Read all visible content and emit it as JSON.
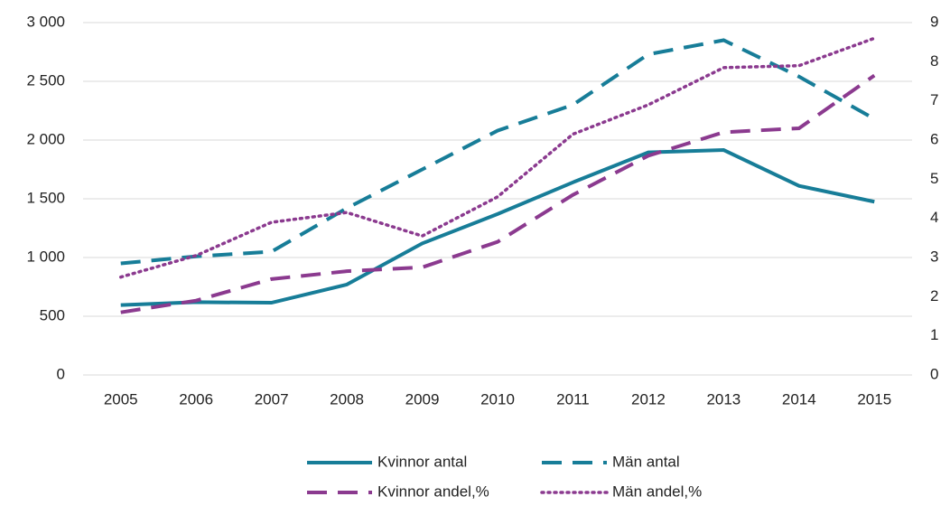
{
  "chart_data": {
    "type": "line",
    "categories": [
      "2005",
      "2006",
      "2007",
      "2008",
      "2009",
      "2010",
      "2011",
      "2012",
      "2013",
      "2014",
      "2015"
    ],
    "ylim": [
      0,
      3000
    ],
    "yticks": [
      0,
      500,
      {
        "value": 1000,
        "label": "1 000"
      },
      {
        "value": 1500,
        "label": "1 500"
      },
      {
        "value": 2000,
        "label": "2 000"
      },
      {
        "value": 2500,
        "label": "2 500"
      },
      {
        "value": 3000,
        "label": "3 000"
      }
    ],
    "y2lim": [
      0,
      9
    ],
    "y2ticks": [
      0,
      1,
      2,
      3,
      4,
      5,
      6,
      7,
      8,
      9
    ],
    "grid": true,
    "legend": "bottom",
    "series": [
      {
        "name": "Kvinnor antal",
        "color": "#177d98",
        "line_style": "solid",
        "values": [
          595,
          620,
          615,
          770,
          1120,
          1370,
          1640,
          1895,
          1915,
          1610,
          1475
        ]
      },
      {
        "name": "Män antal",
        "color": "#177d98",
        "line_style": "dash",
        "values": [
          950,
          1010,
          1050,
          1420,
          1750,
          2080,
          2300,
          2730,
          2850,
          2540,
          2180
        ]
      },
      {
        "name": "Kvinnor andel,%",
        "color": "#8b3a8f",
        "line_style": "dash",
        "axis": "y2",
        "values": [
          1.6,
          1.9,
          2.45,
          2.65,
          2.75,
          3.4,
          4.6,
          5.6,
          6.2,
          6.3,
          7.65
        ]
      },
      {
        "name": "Män andel,%",
        "color": "#8b3a8f",
        "line_style": "dot",
        "axis": "y2",
        "values": [
          2.5,
          3.05,
          3.9,
          4.15,
          3.55,
          4.55,
          6.15,
          6.9,
          7.85,
          7.9,
          8.6
        ]
      }
    ]
  }
}
